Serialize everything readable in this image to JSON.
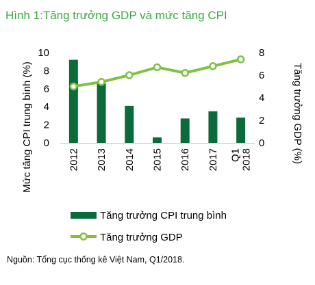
{
  "chart_data": {
    "type": "bar+line",
    "title": "Hình 1:Tăng trưởng GDP và mức tăng CPI",
    "categories": [
      "2012",
      "2013",
      "2014",
      "2015",
      "2016",
      "2017",
      "Q1 2018"
    ],
    "series": [
      {
        "name": "Tăng trưởng CPI trung bình",
        "type": "bar",
        "axis": "left",
        "values": [
          9.2,
          6.6,
          4.1,
          0.6,
          2.7,
          3.5,
          2.8
        ]
      },
      {
        "name": "Tăng trưởng GDP",
        "type": "line",
        "axis": "right",
        "values": [
          5.0,
          5.4,
          6.0,
          6.7,
          6.2,
          6.8,
          7.4
        ]
      }
    ],
    "ylabel_left": "Mức tăng CPI trung bình (%)",
    "ylabel_right": "Tăng trưởng GDP (%)",
    "ylim_left": [
      0,
      10
    ],
    "yticks_left": [
      0,
      2,
      4,
      6,
      8,
      10
    ],
    "ylim_right": [
      0,
      8
    ],
    "yticks_right": [
      0,
      2,
      4,
      6,
      8
    ],
    "grid": false,
    "legend_position": "bottom",
    "colors": {
      "bar": "#0b6b3a",
      "line": "#7dc242",
      "marker_fill": "#ffffff",
      "title": "#3aa845"
    }
  },
  "source_note": "Nguồn: Tổng cục thống kê Việt Nam, Q1/2018."
}
